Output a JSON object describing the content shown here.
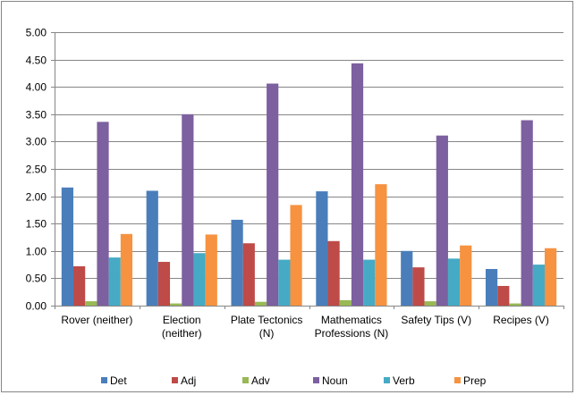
{
  "chart_data": {
    "type": "bar",
    "title": "",
    "xlabel": "",
    "ylabel": "",
    "ylim": [
      0,
      5
    ],
    "y_ticks": [
      "0.00",
      "0.50",
      "1.00",
      "1.50",
      "2.00",
      "2.50",
      "3.00",
      "3.50",
      "4.00",
      "4.50",
      "5.00"
    ],
    "grid": true,
    "legend_position": "bottom",
    "categories": [
      [
        "Rover (neither)"
      ],
      [
        "Election",
        "(neither)"
      ],
      [
        "Plate Tectonics",
        "(N)"
      ],
      [
        "Mathematics",
        "Professions (N)"
      ],
      [
        "Safety Tips (V)"
      ],
      [
        "Recipes (V)"
      ]
    ],
    "series": [
      {
        "name": "Det",
        "color": "#4a7ebb",
        "values": [
          2.16,
          2.1,
          1.57,
          2.09,
          1.0,
          0.67
        ]
      },
      {
        "name": "Adj",
        "color": "#be4b48",
        "values": [
          0.72,
          0.8,
          1.14,
          1.18,
          0.7,
          0.36
        ]
      },
      {
        "name": "Adv",
        "color": "#98b954",
        "values": [
          0.08,
          0.04,
          0.07,
          0.1,
          0.08,
          0.04
        ]
      },
      {
        "name": "Noun",
        "color": "#7d60a0",
        "values": [
          3.36,
          3.5,
          4.06,
          4.43,
          3.11,
          3.39
        ]
      },
      {
        "name": "Verb",
        "color": "#46aac5",
        "values": [
          0.88,
          0.96,
          0.84,
          0.84,
          0.86,
          0.75
        ]
      },
      {
        "name": "Prep",
        "color": "#f69240",
        "values": [
          1.31,
          1.3,
          1.84,
          2.22,
          1.1,
          1.05
        ]
      }
    ]
  }
}
